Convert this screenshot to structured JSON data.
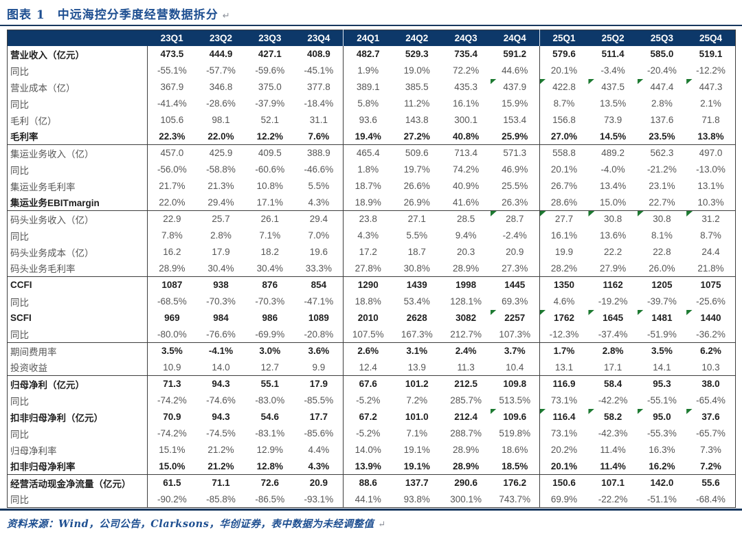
{
  "figure": {
    "label": "图表 1",
    "title": "中远海控分季度经营数据拆分",
    "return_mark": "↵"
  },
  "colors": {
    "header_bg": "#0d3869",
    "title_blue": "#1e4f91",
    "rule_navy": "#17375e",
    "flag_green": "#1d7a31"
  },
  "table": {
    "columns": [
      "23Q1",
      "23Q2",
      "23Q3",
      "23Q4",
      "24Q1",
      "24Q2",
      "24Q3",
      "24Q4",
      "25Q1",
      "25Q2",
      "25Q3",
      "25Q4"
    ],
    "rows": [
      {
        "label": "营业收入（亿元）",
        "bold_label": true,
        "bold_values": true,
        "section_end": false,
        "flags": [],
        "values": [
          "473.5",
          "444.9",
          "427.1",
          "408.9",
          "482.7",
          "529.3",
          "735.4",
          "591.2",
          "579.6",
          "511.4",
          "585.0",
          "519.1"
        ]
      },
      {
        "label": "同比",
        "bold_label": false,
        "bold_values": false,
        "section_end": false,
        "flags": [],
        "values": [
          "-55.1%",
          "-57.7%",
          "-59.6%",
          "-45.1%",
          "1.9%",
          "19.0%",
          "72.2%",
          "44.6%",
          "20.1%",
          "-3.4%",
          "-20.4%",
          "-12.2%"
        ]
      },
      {
        "label": "营业成本（亿）",
        "bold_label": false,
        "bold_values": false,
        "section_end": false,
        "flags": [
          7,
          8,
          9,
          10,
          11
        ],
        "values": [
          "367.9",
          "346.8",
          "375.0",
          "377.8",
          "389.1",
          "385.5",
          "435.3",
          "437.9",
          "422.8",
          "437.5",
          "447.4",
          "447.3"
        ]
      },
      {
        "label": "同比",
        "bold_label": false,
        "bold_values": false,
        "section_end": false,
        "flags": [],
        "values": [
          "-41.4%",
          "-28.6%",
          "-37.9%",
          "-18.4%",
          "5.8%",
          "11.2%",
          "16.1%",
          "15.9%",
          "8.7%",
          "13.5%",
          "2.8%",
          "2.1%"
        ]
      },
      {
        "label": "毛利（亿）",
        "bold_label": false,
        "bold_values": false,
        "section_end": false,
        "flags": [],
        "values": [
          "105.6",
          "98.1",
          "52.1",
          "31.1",
          "93.6",
          "143.8",
          "300.1",
          "153.4",
          "156.8",
          "73.9",
          "137.6",
          "71.8"
        ]
      },
      {
        "label": "毛利率",
        "bold_label": true,
        "bold_values": true,
        "section_end": true,
        "flags": [],
        "values": [
          "22.3%",
          "22.0%",
          "12.2%",
          "7.6%",
          "19.4%",
          "27.2%",
          "40.8%",
          "25.9%",
          "27.0%",
          "14.5%",
          "23.5%",
          "13.8%"
        ]
      },
      {
        "label": "集运业务收入（亿）",
        "bold_label": false,
        "bold_values": false,
        "section_end": false,
        "flags": [],
        "values": [
          "457.0",
          "425.9",
          "409.5",
          "388.9",
          "465.4",
          "509.6",
          "713.4",
          "571.3",
          "558.8",
          "489.2",
          "562.3",
          "497.0"
        ]
      },
      {
        "label": "同比",
        "bold_label": false,
        "bold_values": false,
        "section_end": false,
        "flags": [],
        "values": [
          "-56.0%",
          "-58.8%",
          "-60.6%",
          "-46.6%",
          "1.8%",
          "19.7%",
          "74.2%",
          "46.9%",
          "20.1%",
          "-4.0%",
          "-21.2%",
          "-13.0%"
        ]
      },
      {
        "label": "集运业务毛利率",
        "bold_label": false,
        "bold_values": false,
        "section_end": false,
        "flags": [],
        "values": [
          "21.7%",
          "21.3%",
          "10.8%",
          "5.5%",
          "18.7%",
          "26.6%",
          "40.9%",
          "25.5%",
          "26.7%",
          "13.4%",
          "23.1%",
          "13.1%"
        ]
      },
      {
        "label": "集运业务EBITmargin",
        "bold_label": true,
        "bold_values": false,
        "section_end": true,
        "flags": [],
        "values": [
          "22.0%",
          "29.4%",
          "17.1%",
          "4.3%",
          "18.9%",
          "26.9%",
          "41.6%",
          "26.3%",
          "28.6%",
          "15.0%",
          "22.7%",
          "10.3%"
        ]
      },
      {
        "label": "码头业务收入（亿）",
        "bold_label": false,
        "bold_values": false,
        "section_end": false,
        "flags": [
          7,
          8,
          9,
          10,
          11
        ],
        "values": [
          "22.9",
          "25.7",
          "26.1",
          "29.4",
          "23.8",
          "27.1",
          "28.5",
          "28.7",
          "27.7",
          "30.8",
          "30.8",
          "31.2"
        ]
      },
      {
        "label": "同比",
        "bold_label": false,
        "bold_values": false,
        "section_end": false,
        "flags": [],
        "values": [
          "7.8%",
          "2.8%",
          "7.1%",
          "7.0%",
          "4.3%",
          "5.5%",
          "9.4%",
          "-2.4%",
          "16.1%",
          "13.6%",
          "8.1%",
          "8.7%"
        ]
      },
      {
        "label": "码头业务成本（亿）",
        "bold_label": false,
        "bold_values": false,
        "section_end": false,
        "flags": [],
        "values": [
          "16.2",
          "17.9",
          "18.2",
          "19.6",
          "17.2",
          "18.7",
          "20.3",
          "20.9",
          "19.9",
          "22.2",
          "22.8",
          "24.4"
        ]
      },
      {
        "label": "码头业务毛利率",
        "bold_label": false,
        "bold_values": false,
        "section_end": true,
        "flags": [],
        "values": [
          "28.9%",
          "30.4%",
          "30.4%",
          "33.3%",
          "27.8%",
          "30.8%",
          "28.9%",
          "27.3%",
          "28.2%",
          "27.9%",
          "26.0%",
          "21.8%"
        ]
      },
      {
        "label": "CCFI",
        "bold_label": true,
        "bold_values": true,
        "section_end": false,
        "flags": [],
        "values": [
          "1087",
          "938",
          "876",
          "854",
          "1290",
          "1439",
          "1998",
          "1445",
          "1350",
          "1162",
          "1205",
          "1075"
        ]
      },
      {
        "label": "同比",
        "bold_label": false,
        "bold_values": false,
        "section_end": false,
        "flags": [],
        "values": [
          "-68.5%",
          "-70.3%",
          "-70.3%",
          "-47.1%",
          "18.8%",
          "53.4%",
          "128.1%",
          "69.3%",
          "4.6%",
          "-19.2%",
          "-39.7%",
          "-25.6%"
        ]
      },
      {
        "label": "SCFI",
        "bold_label": true,
        "bold_values": true,
        "section_end": false,
        "flags": [
          7,
          8,
          9,
          10,
          11
        ],
        "values": [
          "969",
          "984",
          "986",
          "1089",
          "2010",
          "2628",
          "3082",
          "2257",
          "1762",
          "1645",
          "1481",
          "1440"
        ]
      },
      {
        "label": "同比",
        "bold_label": false,
        "bold_values": false,
        "section_end": true,
        "flags": [],
        "values": [
          "-80.0%",
          "-76.6%",
          "-69.9%",
          "-20.8%",
          "107.5%",
          "167.3%",
          "212.7%",
          "107.3%",
          "-12.3%",
          "-37.4%",
          "-51.9%",
          "-36.2%"
        ]
      },
      {
        "label": "期间费用率",
        "bold_label": false,
        "bold_values": true,
        "section_end": false,
        "flags": [],
        "values": [
          "3.5%",
          "-4.1%",
          "3.0%",
          "3.6%",
          "2.6%",
          "3.1%",
          "2.4%",
          "3.7%",
          "1.7%",
          "2.8%",
          "3.5%",
          "6.2%"
        ]
      },
      {
        "label": "投资收益",
        "bold_label": false,
        "bold_values": false,
        "section_end": true,
        "flags": [],
        "values": [
          "10.9",
          "14.0",
          "12.7",
          "9.9",
          "12.4",
          "13.9",
          "11.3",
          "10.4",
          "13.1",
          "17.1",
          "14.1",
          "10.3"
        ]
      },
      {
        "label": "归母净利（亿元）",
        "bold_label": true,
        "bold_values": true,
        "section_end": false,
        "flags": [],
        "values": [
          "71.3",
          "94.3",
          "55.1",
          "17.9",
          "67.6",
          "101.2",
          "212.5",
          "109.8",
          "116.9",
          "58.4",
          "95.3",
          "38.0"
        ]
      },
      {
        "label": "同比",
        "bold_label": false,
        "bold_values": false,
        "section_end": false,
        "flags": [],
        "values": [
          "-74.2%",
          "-74.6%",
          "-83.0%",
          "-85.5%",
          "-5.2%",
          "7.2%",
          "285.7%",
          "513.5%",
          "73.1%",
          "-42.2%",
          "-55.1%",
          "-65.4%"
        ]
      },
      {
        "label": "扣非归母净利（亿元）",
        "bold_label": true,
        "bold_values": true,
        "section_end": false,
        "flags": [
          7,
          8,
          9,
          10,
          11
        ],
        "values": [
          "70.9",
          "94.3",
          "54.6",
          "17.7",
          "67.2",
          "101.0",
          "212.4",
          "109.6",
          "116.4",
          "58.2",
          "95.0",
          "37.6"
        ]
      },
      {
        "label": "同比",
        "bold_label": false,
        "bold_values": false,
        "section_end": false,
        "flags": [],
        "values": [
          "-74.2%",
          "-74.5%",
          "-83.1%",
          "-85.6%",
          "-5.2%",
          "7.1%",
          "288.7%",
          "519.8%",
          "73.1%",
          "-42.3%",
          "-55.3%",
          "-65.7%"
        ]
      },
      {
        "label": "归母净利率",
        "bold_label": false,
        "bold_values": false,
        "section_end": false,
        "flags": [],
        "values": [
          "15.1%",
          "21.2%",
          "12.9%",
          "4.4%",
          "14.0%",
          "19.1%",
          "28.9%",
          "18.6%",
          "20.2%",
          "11.4%",
          "16.3%",
          "7.3%"
        ]
      },
      {
        "label": "扣非归母净利率",
        "bold_label": true,
        "bold_values": true,
        "section_end": true,
        "flags": [],
        "values": [
          "15.0%",
          "21.2%",
          "12.8%",
          "4.3%",
          "13.9%",
          "19.1%",
          "28.9%",
          "18.5%",
          "20.1%",
          "11.4%",
          "16.2%",
          "7.2%"
        ]
      },
      {
        "label": "经营活动现金净流量（亿元）",
        "bold_label": true,
        "bold_values": true,
        "section_end": false,
        "flags": [],
        "values": [
          "61.5",
          "71.1",
          "72.6",
          "20.9",
          "88.6",
          "137.7",
          "290.6",
          "176.2",
          "150.6",
          "107.1",
          "142.0",
          "55.6"
        ]
      },
      {
        "label": "同比",
        "bold_label": false,
        "bold_values": false,
        "section_end": false,
        "flags": [],
        "values": [
          "-90.2%",
          "-85.8%",
          "-86.5%",
          "-93.1%",
          "44.1%",
          "93.8%",
          "300.1%",
          "743.7%",
          "69.9%",
          "-22.2%",
          "-51.1%",
          "-68.4%"
        ]
      }
    ]
  },
  "footer": {
    "source": "资料来源：Wind，公司公告，Clarksons，华创证券，表中数据为未经调整值",
    "return_mark": "↵"
  }
}
